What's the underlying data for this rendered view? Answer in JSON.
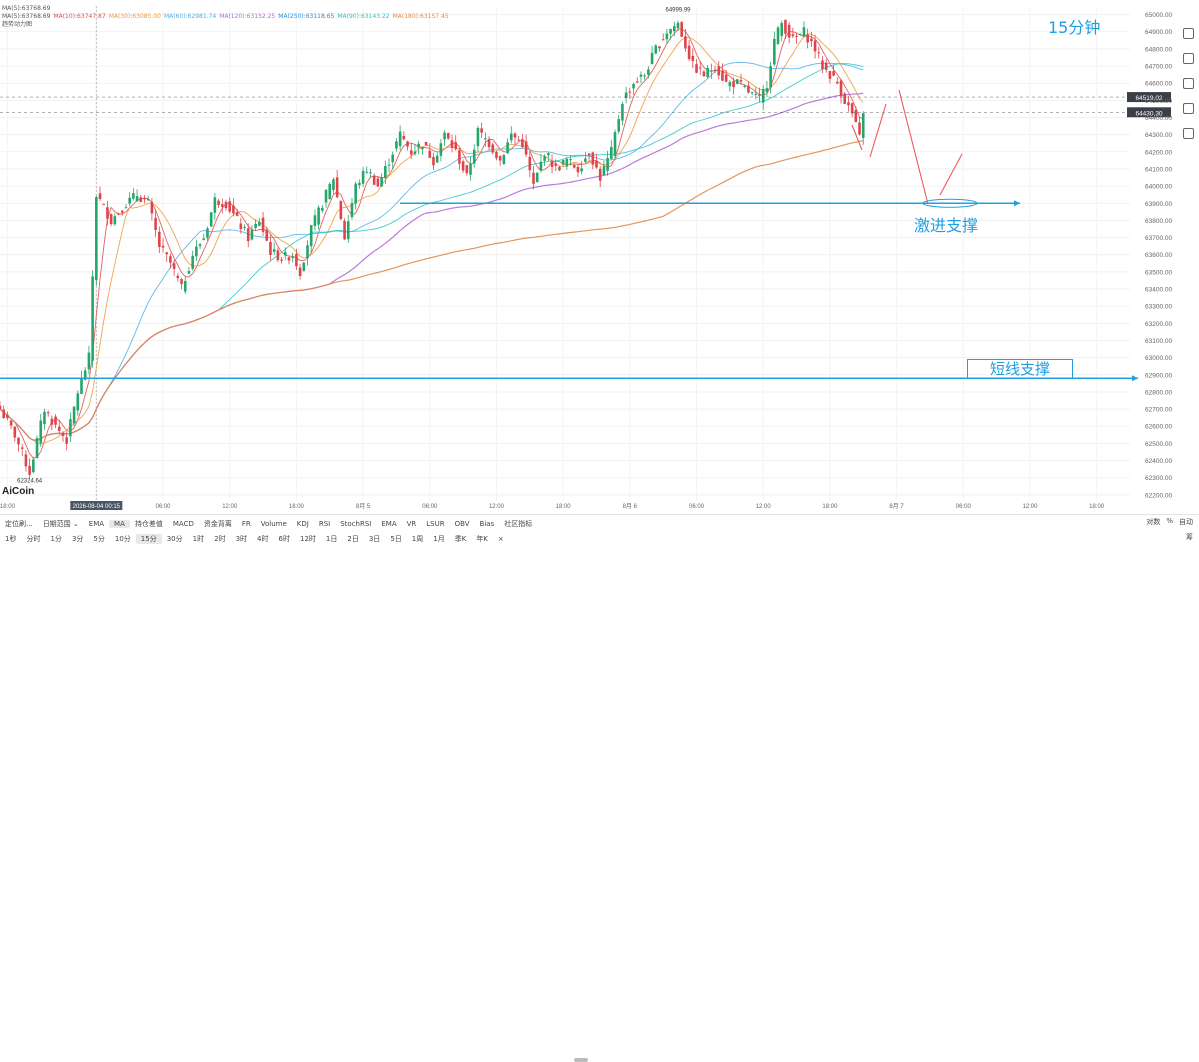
{
  "ma_legend": {
    "row1_label": "MA(5):63768.69",
    "items": [
      {
        "label": "MA(5):63768.69",
        "color": "#555555"
      },
      {
        "label": "MA(10):63747.87",
        "color": "#e0504f"
      },
      {
        "label": "MA(30):63085.00",
        "color": "#f09a36"
      },
      {
        "label": "MA(60):62981.74",
        "color": "#52b1e8"
      },
      {
        "label": "MA(120):63152.25",
        "color": "#b36fd6"
      },
      {
        "label": "MA(250):63118.65",
        "color": "#2c8fdd"
      },
      {
        "label": "MA(90):63143.22",
        "color": "#2cc6c6"
      },
      {
        "label": "MA(180):63157.45",
        "color": "#e08a4a"
      }
    ],
    "row3": "趋势动力图"
  },
  "timeframe_label": "15分钟",
  "annotations": {
    "aggressive_support": "激进支撑",
    "short_support": "短线支撑"
  },
  "brand": "AiCoin",
  "chart_data": {
    "type": "candlestick",
    "title": "",
    "y_ticks": [
      62200,
      62300,
      62400,
      62500,
      62600,
      62700,
      62800,
      62900,
      63000,
      63100,
      63200,
      63300,
      63400,
      63500,
      63600,
      63700,
      63800,
      63900,
      64000,
      64100,
      64200,
      64300,
      64400,
      64500,
      64600,
      64700,
      64800,
      64900,
      65000
    ],
    "y_tick_labels": [
      "62200.00",
      "62300.00",
      "62400.00",
      "62500.00",
      "62600.00",
      "62700.00",
      "62800.00",
      "62900.00",
      "63000.00",
      "63100.00",
      "63200.00",
      "63300.00",
      "63400.00",
      "63500.00",
      "63600.00",
      "63700.00",
      "63800.00",
      "63900.00",
      "64000.00",
      "64100.00",
      "64200.00",
      "64300.00",
      "64400.00",
      "64500.00",
      "64600.00",
      "64700.00",
      "64800.00",
      "64900.00",
      "65000.00"
    ],
    "ylim": [
      62170,
      65050
    ],
    "x_tick_labels": [
      {
        "x": 2,
        "label": "18:00"
      },
      {
        "x": 26,
        "label": "2026-08-04 00:15"
      },
      {
        "x": 44,
        "label": "06:00"
      },
      {
        "x": 62,
        "label": "12:00"
      },
      {
        "x": 80,
        "label": "18:00"
      },
      {
        "x": 98,
        "label": "8月 5"
      },
      {
        "x": 116,
        "label": "06:00"
      },
      {
        "x": 134,
        "label": "12:00"
      },
      {
        "x": 152,
        "label": "18:00"
      },
      {
        "x": 170,
        "label": "8月 6"
      },
      {
        "x": 188,
        "label": "06:00"
      },
      {
        "x": 206,
        "label": "12:00"
      },
      {
        "x": 224,
        "label": "18:00"
      },
      {
        "x": 242,
        "label": "8月 7"
      },
      {
        "x": 260,
        "label": "06:00"
      },
      {
        "x": 278,
        "label": "12:00"
      },
      {
        "x": 296,
        "label": "18:00"
      }
    ],
    "x_range": [
      0,
      305
    ],
    "price_anchor": [
      [
        0,
        62700
      ],
      [
        4,
        62550
      ],
      [
        8,
        62330
      ],
      [
        12,
        62700
      ],
      [
        15,
        62600
      ],
      [
        18,
        62520
      ],
      [
        21,
        62800
      ],
      [
        24,
        63000
      ],
      [
        26,
        63950
      ],
      [
        30,
        63800
      ],
      [
        34,
        63900
      ],
      [
        37,
        63950
      ],
      [
        40,
        63900
      ],
      [
        43,
        63650
      ],
      [
        46,
        63550
      ],
      [
        49,
        63400
      ],
      [
        52,
        63600
      ],
      [
        55,
        63700
      ],
      [
        58,
        63920
      ],
      [
        61,
        63900
      ],
      [
        64,
        63800
      ],
      [
        67,
        63700
      ],
      [
        70,
        63800
      ],
      [
        73,
        63620
      ],
      [
        76,
        63580
      ],
      [
        79,
        63600
      ],
      [
        81,
        63500
      ],
      [
        84,
        63750
      ],
      [
        87,
        63900
      ],
      [
        90,
        64050
      ],
      [
        93,
        63700
      ],
      [
        96,
        64000
      ],
      [
        99,
        64100
      ],
      [
        102,
        64000
      ],
      [
        105,
        64150
      ],
      [
        108,
        64300
      ],
      [
        111,
        64200
      ],
      [
        114,
        64250
      ],
      [
        117,
        64150
      ],
      [
        120,
        64300
      ],
      [
        123,
        64200
      ],
      [
        126,
        64050
      ],
      [
        129,
        64320
      ],
      [
        132,
        64250
      ],
      [
        135,
        64150
      ],
      [
        138,
        64300
      ],
      [
        141,
        64250
      ],
      [
        144,
        64000
      ],
      [
        147,
        64200
      ],
      [
        150,
        64100
      ],
      [
        153,
        64150
      ],
      [
        156,
        64100
      ],
      [
        159,
        64200
      ],
      [
        162,
        64050
      ],
      [
        165,
        64200
      ],
      [
        168,
        64500
      ],
      [
        171,
        64600
      ],
      [
        174,
        64650
      ],
      [
        177,
        64800
      ],
      [
        180,
        64900
      ],
      [
        183,
        64950
      ],
      [
        185,
        64820
      ],
      [
        187,
        64700
      ],
      [
        190,
        64650
      ],
      [
        193,
        64700
      ],
      [
        196,
        64600
      ],
      [
        199,
        64600
      ],
      [
        202,
        64550
      ],
      [
        205,
        64500
      ],
      [
        207,
        64600
      ],
      [
        209,
        64850
      ],
      [
        211,
        64950
      ],
      [
        214,
        64850
      ],
      [
        217,
        64900
      ],
      [
        220,
        64800
      ],
      [
        222,
        64700
      ],
      [
        224,
        64650
      ],
      [
        226,
        64600
      ],
      [
        228,
        64500
      ],
      [
        230,
        64420
      ],
      [
        232,
        64280
      ],
      [
        233,
        64440
      ]
    ],
    "price_lines": [
      {
        "value": 64519.02,
        "label": "64519.02",
        "color": "#333333"
      },
      {
        "value": 64430.3,
        "label": "64430.30",
        "color": "#333333"
      }
    ],
    "marked_values": [
      {
        "value": 64999.99,
        "label": "64999.99",
        "x": 183
      },
      {
        "value": 62324.64,
        "label": "62324.64",
        "x": 8
      }
    ],
    "support_levels": [
      {
        "name": "激进支撑",
        "value": 63900
      },
      {
        "name": "短线支撑",
        "value": 62880
      }
    ],
    "bottom_toolbar": {
      "row1": [
        "定位刷...",
        "日期范围 ⌄",
        "EMA",
        "MA",
        "持仓差值",
        "MACD",
        "资金背离",
        "FR",
        "Volume",
        "KDJ",
        "RSI",
        "StochRSI",
        "EMA",
        "VR",
        "LSUR",
        "OBV",
        "Bias",
        "社区指标"
      ],
      "row1_active": "MA",
      "row1_right": [
        "对数",
        "%",
        "自动"
      ],
      "row2": [
        "1秒",
        "分时",
        "1分",
        "3分",
        "5分",
        "10分",
        "15分",
        "30分",
        "1时",
        "2时",
        "3时",
        "4时",
        "6时",
        "12时",
        "1日",
        "2日",
        "3日",
        "5日",
        "1周",
        "1月",
        "季K",
        "年K",
        "×"
      ],
      "row2_active": "15分",
      "row2_right": "筹"
    }
  }
}
